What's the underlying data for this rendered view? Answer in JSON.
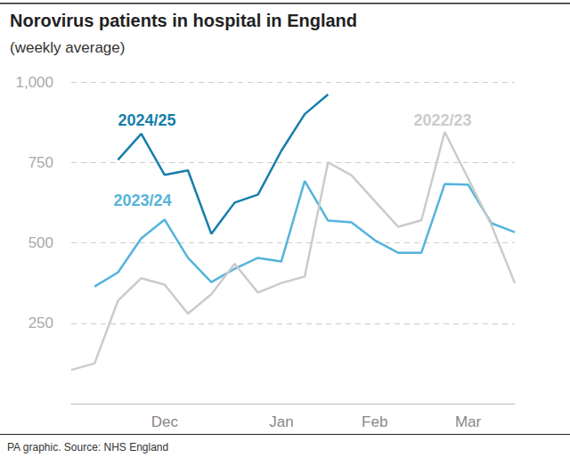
{
  "chart_data": {
    "type": "line",
    "title": "Norovirus patients in hospital in England",
    "subtitle": "(weekly average)",
    "source": "PA graphic. Source: NHS England",
    "categories": [
      null,
      null,
      null,
      null,
      "Dec",
      null,
      null,
      null,
      null,
      "Jan",
      null,
      null,
      null,
      "Feb",
      null,
      null,
      null,
      "Mar",
      null,
      null
    ],
    "series": [
      {
        "name": "2024/25",
        "color": "#167fab",
        "values": [
          null,
          null,
          758,
          839,
          711,
          725,
          528,
          625,
          650,
          786,
          900,
          961,
          null,
          null,
          null,
          null,
          null,
          null,
          null,
          null
        ]
      },
      {
        "name": "2023/24",
        "color": "#55b4db",
        "values": [
          null,
          364,
          408,
          514,
          572,
          453,
          378,
          419,
          453,
          442,
          692,
          569,
          564,
          508,
          469,
          469,
          683,
          681,
          561,
          533
        ]
      },
      {
        "name": "2022/23",
        "color": "#cbcbcb",
        "values": [
          105,
          125,
          320,
          390,
          370,
          280,
          340,
          435,
          345,
          375,
          395,
          750,
          710,
          630,
          550,
          570,
          845,
          700,
          555,
          375
        ]
      }
    ],
    "ylim": [
      0,
      1000
    ],
    "yticks": [
      250,
      500,
      750,
      {
        "value": 1000,
        "label": "1,000"
      }
    ],
    "grid": true
  }
}
